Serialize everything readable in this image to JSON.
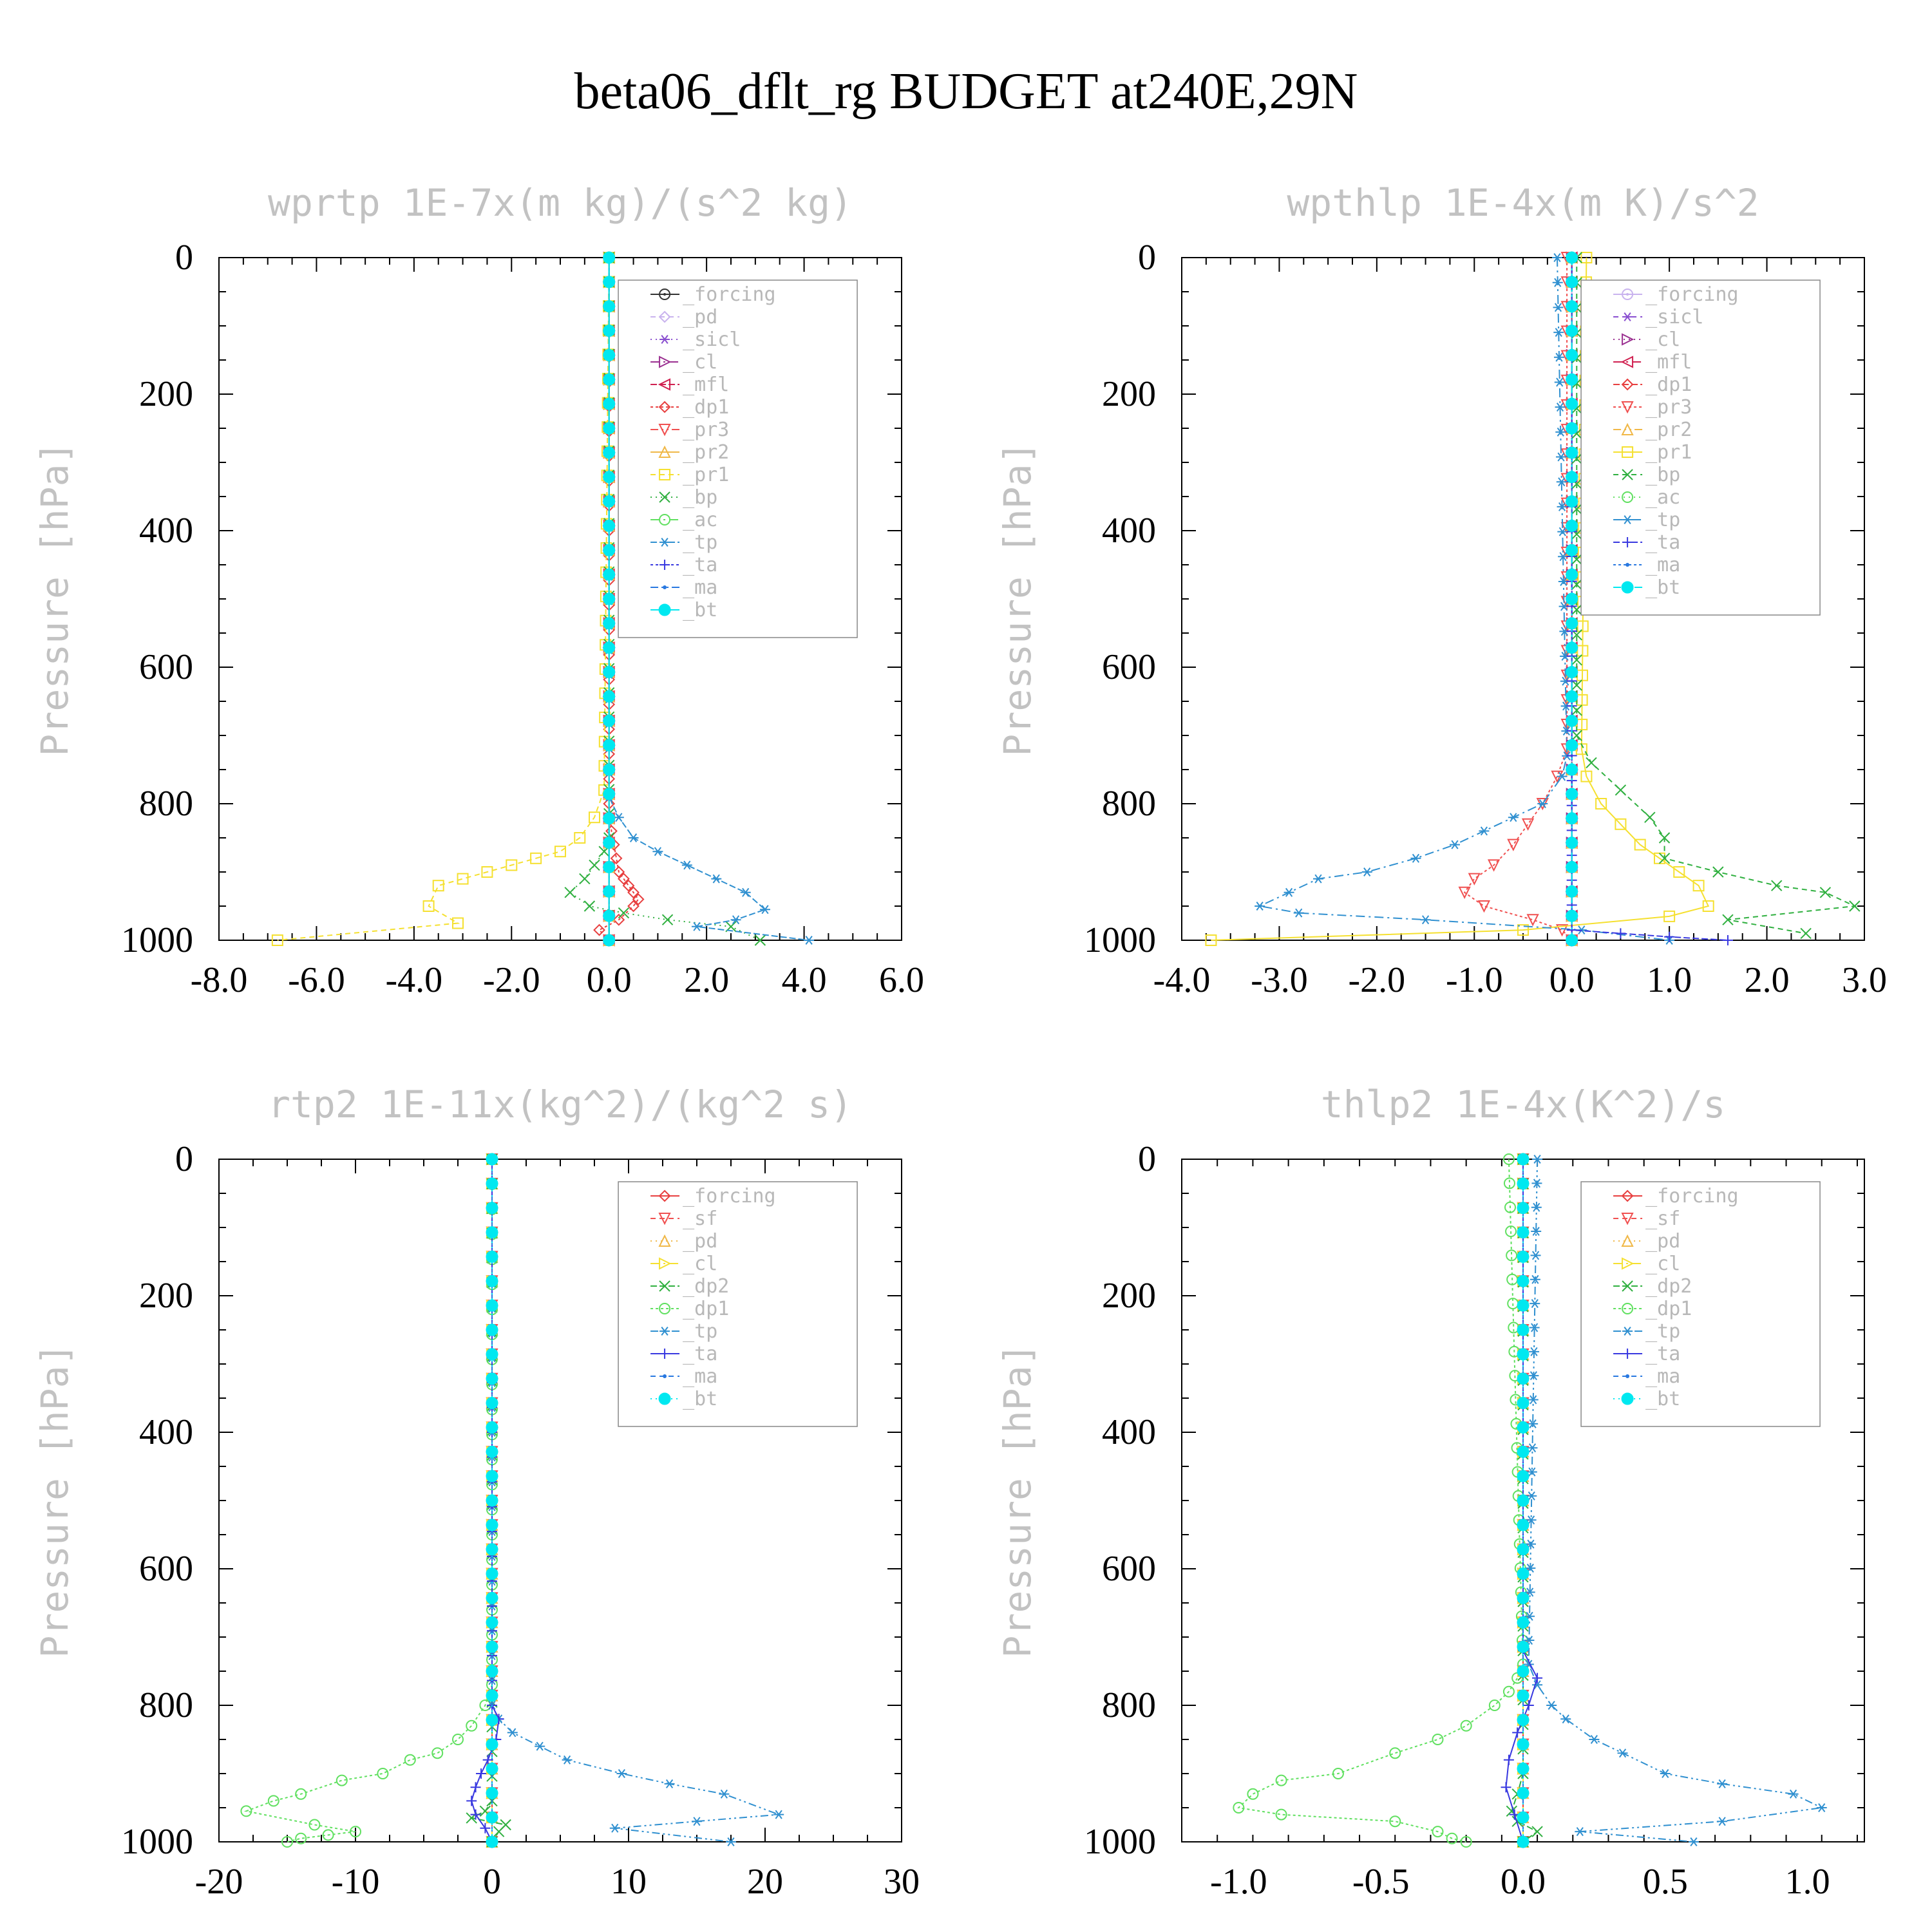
{
  "figure": {
    "title": "beta06_dflt_rg  BUDGET at240E,29N"
  },
  "chart_data": [
    {
      "type": "line",
      "title": "wprtp   1E-7x(m kg)/(s^2 kg)",
      "ylabel": "Pressure [hPa]",
      "xlim": [
        -8.0,
        6.0
      ],
      "ylim": [
        1000,
        0
      ],
      "y_inverted": true,
      "xticks": [
        "-8.0",
        "-6.0",
        "-4.0",
        "-2.0",
        "0.0",
        "2.0",
        "4.0",
        "6.0"
      ],
      "yticks": [
        "0",
        "200",
        "400",
        "600",
        "800",
        "1000"
      ],
      "legend_position": "top-right",
      "series": [
        {
          "name": "_forcing",
          "color": "#333333",
          "marker": "circle-dot",
          "x": [
            0,
            0
          ],
          "y": [
            0,
            1000
          ]
        },
        {
          "name": "_pd",
          "color": "#c9b3ee",
          "marker": "diamond",
          "x": [
            0,
            0
          ],
          "y": [
            0,
            1000
          ]
        },
        {
          "name": "_sicl",
          "color": "#8a4fd0",
          "marker": "star",
          "x": [
            0,
            0
          ],
          "y": [
            0,
            1000
          ]
        },
        {
          "name": "_cl",
          "color": "#9a2f90",
          "marker": "tri-right",
          "x": [
            0,
            0
          ],
          "y": [
            0,
            1000
          ]
        },
        {
          "name": "_mfl",
          "color": "#d02050",
          "marker": "tri-left",
          "x": [
            0,
            0
          ],
          "y": [
            0,
            1000
          ]
        },
        {
          "name": "_dp1",
          "color": "#e84040",
          "marker": "diamond",
          "x": [
            0,
            0,
            0.02,
            0.05,
            0.1,
            0.15,
            0.2,
            0.3,
            0.4,
            0.5,
            0.6,
            0.5,
            0.2,
            -0.2,
            0
          ],
          "y": [
            0,
            800,
            820,
            840,
            860,
            880,
            900,
            910,
            920,
            930,
            940,
            950,
            970,
            985,
            1000
          ]
        },
        {
          "name": "_pr3",
          "color": "#f05050",
          "marker": "tri-down",
          "x": [
            0,
            0
          ],
          "y": [
            0,
            1000
          ]
        },
        {
          "name": "_pr2",
          "color": "#f0b848",
          "marker": "tri-up",
          "x": [
            0,
            0
          ],
          "y": [
            0,
            1000
          ]
        },
        {
          "name": "_pr1",
          "color": "#f5e030",
          "marker": "square",
          "x": [
            0,
            -0.1,
            -0.3,
            -0.6,
            -1.0,
            -1.5,
            -2.0,
            -2.5,
            -3.0,
            -3.5,
            -3.7,
            -3.1,
            -6.8
          ],
          "y": [
            0,
            780,
            820,
            850,
            870,
            880,
            890,
            900,
            910,
            920,
            950,
            975,
            1000
          ]
        },
        {
          "name": "_bp",
          "color": "#30b040",
          "marker": "cross",
          "x": [
            0,
            0,
            -0.1,
            -0.3,
            -0.5,
            -0.8,
            -0.4,
            0.3,
            1.2,
            2.5,
            3.1
          ],
          "y": [
            0,
            850,
            870,
            890,
            910,
            930,
            950,
            960,
            970,
            980,
            1000
          ]
        },
        {
          "name": "_ac",
          "color": "#60e060",
          "marker": "circle",
          "x": [
            0,
            0
          ],
          "y": [
            0,
            1000
          ]
        },
        {
          "name": "_tp",
          "color": "#3090d0",
          "marker": "asterisk",
          "x": [
            0,
            0,
            0.2,
            0.5,
            1.0,
            1.6,
            2.2,
            2.8,
            3.2,
            2.6,
            1.8,
            4.1
          ],
          "y": [
            0,
            790,
            820,
            850,
            870,
            890,
            910,
            930,
            955,
            970,
            980,
            1000
          ]
        },
        {
          "name": "_ta",
          "color": "#3838e0",
          "marker": "plus",
          "x": [
            0,
            0
          ],
          "y": [
            0,
            1000
          ]
        },
        {
          "name": "_ma",
          "color": "#2878e0",
          "marker": "dot",
          "x": [
            0,
            0
          ],
          "y": [
            0,
            1000
          ]
        },
        {
          "name": "_bt",
          "color": "#00e8f0",
          "marker": "filled-circle",
          "x": [
            0,
            0
          ],
          "y": [
            0,
            1000
          ]
        }
      ]
    },
    {
      "type": "line",
      "title": "wpthlp   1E-4x(m K)/s^2",
      "ylabel": "Pressure [hPa]",
      "xlim": [
        -4.0,
        3.0
      ],
      "ylim": [
        1000,
        0
      ],
      "y_inverted": true,
      "xticks": [
        "-4.0",
        "-3.0",
        "-2.0",
        "-1.0",
        "0.0",
        "1.0",
        "2.0",
        "3.0"
      ],
      "yticks": [
        "0",
        "200",
        "400",
        "600",
        "800",
        "1000"
      ],
      "legend_position": "top-right",
      "series": [
        {
          "name": "_forcing",
          "color": "#c9b3ee",
          "marker": "circle-dot",
          "x": [
            0,
            0
          ],
          "y": [
            0,
            1000
          ]
        },
        {
          "name": "_sicl",
          "color": "#8a4fd0",
          "marker": "star",
          "x": [
            0,
            0
          ],
          "y": [
            0,
            1000
          ]
        },
        {
          "name": "_cl",
          "color": "#9a2f90",
          "marker": "tri-right",
          "x": [
            0,
            0
          ],
          "y": [
            0,
            1000
          ]
        },
        {
          "name": "_mfl",
          "color": "#d02050",
          "marker": "tri-left",
          "x": [
            0,
            0
          ],
          "y": [
            0,
            1000
          ]
        },
        {
          "name": "_dp1",
          "color": "#e84040",
          "marker": "diamond",
          "x": [
            0,
            0
          ],
          "y": [
            0,
            1000
          ]
        },
        {
          "name": "_pr3",
          "color": "#f05050",
          "marker": "tri-down",
          "x": [
            -0.05,
            -0.05,
            -0.15,
            -0.3,
            -0.45,
            -0.6,
            -0.8,
            -1.0,
            -1.1,
            -0.9,
            -0.4,
            -0.1,
            0
          ],
          "y": [
            0,
            720,
            760,
            800,
            830,
            860,
            890,
            910,
            930,
            950,
            970,
            985,
            1000
          ]
        },
        {
          "name": "_pr2",
          "color": "#f0b848",
          "marker": "tri-up",
          "x": [
            0,
            0
          ],
          "y": [
            0,
            1000
          ]
        },
        {
          "name": "_pr1",
          "color": "#f5e030",
          "marker": "square",
          "x": [
            0.15,
            0.1,
            0.15,
            0.3,
            0.5,
            0.7,
            0.9,
            1.1,
            1.3,
            1.4,
            1.0,
            -0.5,
            -3.7
          ],
          "y": [
            0,
            720,
            760,
            800,
            830,
            860,
            880,
            900,
            920,
            950,
            965,
            985,
            1000
          ]
        },
        {
          "name": "_bp",
          "color": "#30b040",
          "marker": "cross",
          "x": [
            0.05,
            0.05,
            0.2,
            0.5,
            0.8,
            0.95,
            0.95,
            1.5,
            2.1,
            2.6,
            2.9,
            1.6,
            2.4
          ],
          "y": [
            0,
            700,
            740,
            780,
            820,
            850,
            880,
            900,
            920,
            930,
            950,
            970,
            990
          ]
        },
        {
          "name": "_ac",
          "color": "#60e060",
          "marker": "circle",
          "x": [
            0,
            0
          ],
          "y": [
            0,
            1000
          ]
        },
        {
          "name": "_tp",
          "color": "#3090d0",
          "marker": "asterisk",
          "x": [
            -0.15,
            -0.05,
            -0.1,
            -0.3,
            -0.6,
            -0.9,
            -1.2,
            -1.6,
            -2.1,
            -2.6,
            -2.9,
            -3.2,
            -2.8,
            -1.5,
            0.1,
            1.0
          ],
          "y": [
            0,
            730,
            760,
            800,
            820,
            840,
            860,
            880,
            900,
            910,
            930,
            950,
            960,
            970,
            985,
            1000
          ]
        },
        {
          "name": "_ta",
          "color": "#3838e0",
          "marker": "plus",
          "x": [
            0,
            0,
            0.5,
            1.0,
            1.6
          ],
          "y": [
            0,
            985,
            990,
            995,
            1000
          ]
        },
        {
          "name": "_ma",
          "color": "#2878e0",
          "marker": "dot",
          "x": [
            0,
            0
          ],
          "y": [
            0,
            1000
          ]
        },
        {
          "name": "_bt",
          "color": "#00e8f0",
          "marker": "filled-circle",
          "x": [
            0,
            0
          ],
          "y": [
            0,
            1000
          ]
        }
      ]
    },
    {
      "type": "line",
      "title": "rtp2   1E-11x(kg^2)/(kg^2 s)",
      "ylabel": "Pressure [hPa]",
      "xlim": [
        -20,
        30
      ],
      "ylim": [
        1000,
        0
      ],
      "y_inverted": true,
      "xticks": [
        "-20",
        "-10",
        "0",
        "10",
        "20",
        "30"
      ],
      "yticks": [
        "0",
        "200",
        "400",
        "600",
        "800",
        "1000"
      ],
      "legend_position": "top-right",
      "series": [
        {
          "name": "_forcing",
          "color": "#e84040",
          "marker": "diamond",
          "x": [
            0,
            0
          ],
          "y": [
            0,
            1000
          ]
        },
        {
          "name": "_sf",
          "color": "#f05050",
          "marker": "tri-down",
          "x": [
            0,
            0
          ],
          "y": [
            0,
            1000
          ]
        },
        {
          "name": "_pd",
          "color": "#f0b848",
          "marker": "tri-up",
          "x": [
            0,
            0
          ],
          "y": [
            0,
            1000
          ]
        },
        {
          "name": "_cl",
          "color": "#f5e030",
          "marker": "tri-right",
          "x": [
            0,
            0
          ],
          "y": [
            0,
            1000
          ]
        },
        {
          "name": "_dp2",
          "color": "#30b040",
          "marker": "cross",
          "x": [
            0,
            0,
            -0.5,
            -1.5,
            1.0,
            0.5,
            0
          ],
          "y": [
            0,
            940,
            955,
            965,
            975,
            985,
            1000
          ]
        },
        {
          "name": "_dp1",
          "color": "#60e060",
          "marker": "circle",
          "x": [
            0,
            0,
            -0.5,
            -1.5,
            -2.5,
            -4,
            -6,
            -8,
            -11,
            -14,
            -16,
            -18,
            -13,
            -10,
            -12,
            -14,
            -15
          ],
          "y": [
            0,
            770,
            800,
            830,
            850,
            870,
            880,
            900,
            910,
            930,
            940,
            955,
            975,
            985,
            990,
            995,
            1000
          ]
        },
        {
          "name": "_tp",
          "color": "#3090d0",
          "marker": "asterisk",
          "x": [
            0,
            0,
            0.5,
            1.5,
            3.5,
            5.5,
            9.5,
            13,
            17,
            21,
            15,
            9,
            17.5
          ],
          "y": [
            0,
            800,
            820,
            840,
            860,
            880,
            900,
            915,
            930,
            960,
            970,
            980,
            1000
          ]
        },
        {
          "name": "_ta",
          "color": "#3838e0",
          "marker": "plus",
          "x": [
            0,
            0,
            0.5,
            0.3,
            -0.3,
            -0.8,
            -1.2,
            -1.5,
            -1.2,
            -0.5,
            0
          ],
          "y": [
            0,
            800,
            820,
            850,
            880,
            900,
            920,
            940,
            960,
            980,
            1000
          ]
        },
        {
          "name": "_ma",
          "color": "#2878e0",
          "marker": "dot",
          "x": [
            0,
            0
          ],
          "y": [
            0,
            1000
          ]
        },
        {
          "name": "_bt",
          "color": "#00e8f0",
          "marker": "filled-circle",
          "x": [
            0,
            0
          ],
          "y": [
            0,
            1000
          ]
        }
      ]
    },
    {
      "type": "line",
      "title": "thlp2   1E-4x(K^2)/s",
      "ylabel": "Pressure [hPa]",
      "xlim": [
        -1.2,
        1.2
      ],
      "ylim": [
        1000,
        0
      ],
      "y_inverted": true,
      "xticks": [
        "-1.0",
        "-0.5",
        "0.0",
        "0.5",
        "1.0"
      ],
      "yticks": [
        "0",
        "200",
        "400",
        "600",
        "800",
        "1000"
      ],
      "legend_position": "top-right",
      "series": [
        {
          "name": "_forcing",
          "color": "#e84040",
          "marker": "diamond",
          "x": [
            0,
            0
          ],
          "y": [
            0,
            1000
          ]
        },
        {
          "name": "_sf",
          "color": "#f05050",
          "marker": "tri-down",
          "x": [
            0,
            0
          ],
          "y": [
            0,
            1000
          ]
        },
        {
          "name": "_pd",
          "color": "#f0b848",
          "marker": "tri-up",
          "x": [
            0,
            0
          ],
          "y": [
            0,
            1000
          ]
        },
        {
          "name": "_cl",
          "color": "#f5e030",
          "marker": "tri-right",
          "x": [
            0,
            0
          ],
          "y": [
            0,
            1000
          ]
        },
        {
          "name": "_dp2",
          "color": "#30b040",
          "marker": "cross",
          "x": [
            0,
            0,
            -0.02,
            -0.04,
            -0.02,
            0.05,
            0
          ],
          "y": [
            0,
            900,
            930,
            955,
            970,
            985,
            1000
          ]
        },
        {
          "name": "_dp1",
          "color": "#60e060",
          "marker": "circle",
          "x": [
            -0.05,
            0,
            -0.02,
            -0.05,
            -0.1,
            -0.2,
            -0.3,
            -0.45,
            -0.65,
            -0.85,
            -0.95,
            -1.0,
            -0.85,
            -0.45,
            -0.3,
            -0.25,
            -0.2
          ],
          "y": [
            0,
            740,
            760,
            780,
            800,
            830,
            850,
            870,
            900,
            910,
            930,
            950,
            960,
            970,
            985,
            995,
            1000
          ]
        },
        {
          "name": "_tp",
          "color": "#3090d0",
          "marker": "asterisk",
          "x": [
            0.05,
            0.02,
            0.05,
            0.1,
            0.15,
            0.25,
            0.35,
            0.5,
            0.7,
            0.95,
            1.05,
            0.7,
            0.2,
            0.6
          ],
          "y": [
            0,
            740,
            770,
            800,
            820,
            850,
            870,
            900,
            915,
            930,
            950,
            970,
            985,
            1000
          ]
        },
        {
          "name": "_ta",
          "color": "#3838e0",
          "marker": "plus",
          "x": [
            0,
            0,
            0.05,
            0.02,
            -0.02,
            -0.05,
            -0.06,
            -0.03,
            0
          ],
          "y": [
            0,
            720,
            760,
            800,
            840,
            880,
            920,
            960,
            1000
          ]
        },
        {
          "name": "_ma",
          "color": "#2878e0",
          "marker": "dot",
          "x": [
            0,
            0
          ],
          "y": [
            0,
            1000
          ]
        },
        {
          "name": "_bt",
          "color": "#00e8f0",
          "marker": "filled-circle",
          "x": [
            0,
            0
          ],
          "y": [
            0,
            1000
          ]
        }
      ]
    }
  ]
}
